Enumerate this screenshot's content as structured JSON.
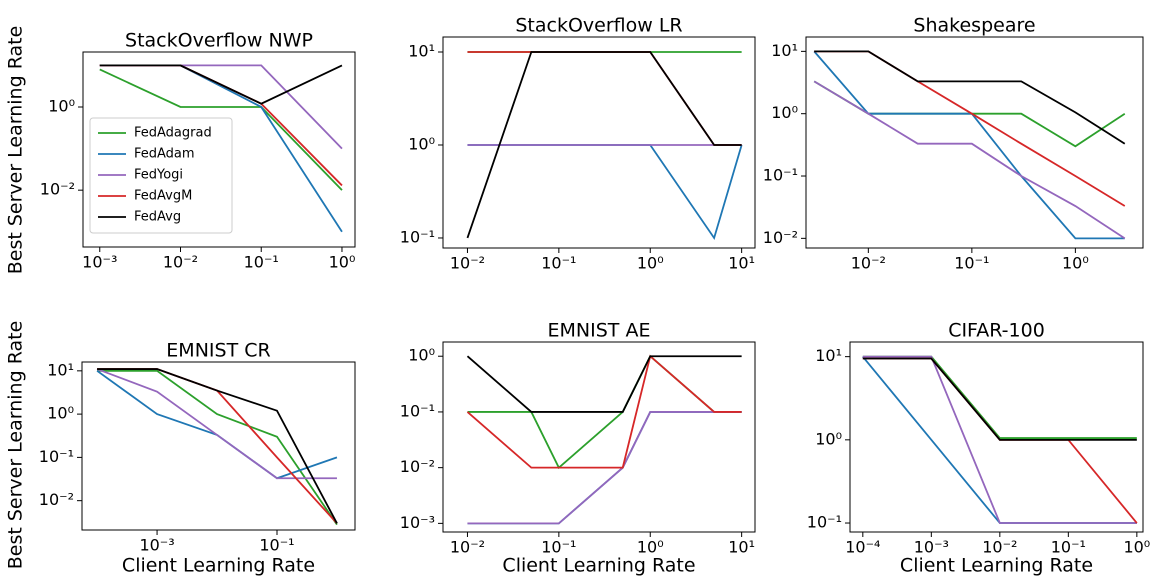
{
  "chart_data": [
    {
      "type": "line",
      "title": "StackOverflow NWP",
      "ylabel": "Best Server Learning Rate",
      "xscale": "log",
      "yscale": "log",
      "legend": "lower left",
      "x": [
        0.001,
        0.01,
        0.1,
        1
      ],
      "series": [
        {
          "name": "FedAdagrad",
          "color": "#2ca02c",
          "values": [
            8,
            1,
            1,
            0.01
          ]
        },
        {
          "name": "FedAdam",
          "color": "#1f77b4",
          "values": [
            10,
            10,
            1,
            0.001
          ]
        },
        {
          "name": "FedYogi",
          "color": "#9467bd",
          "values": [
            10,
            10,
            10,
            0.1
          ]
        },
        {
          "name": "FedAvgM",
          "color": "#d62728",
          "values": [
            10,
            10,
            1.2,
            0.013
          ]
        },
        {
          "name": "FedAvg",
          "color": "#000000",
          "values": [
            10,
            10,
            1.2,
            10
          ]
        }
      ],
      "xlim": [
        0.00062,
        1.45
      ],
      "ylim": [
        0.00043,
        21
      ],
      "xticks": [
        {
          "value": 0.001,
          "label": "10⁻³"
        },
        {
          "value": 0.01,
          "label": "10⁻²"
        },
        {
          "value": 0.1,
          "label": "10⁻¹"
        },
        {
          "value": 1,
          "label": "10⁰"
        }
      ],
      "yticks": [
        {
          "value": 0.01,
          "label": "10⁻²"
        },
        {
          "value": 1,
          "label": "10⁰"
        }
      ]
    },
    {
      "type": "line",
      "title": "StackOverflow LR",
      "xscale": "log",
      "yscale": "log",
      "x": [
        0.01,
        0.05,
        1,
        5,
        10
      ],
      "series": [
        {
          "name": "FedAdagrad",
          "color": "#2ca02c",
          "values": [
            10,
            10,
            10,
            10,
            10
          ]
        },
        {
          "name": "FedAdam",
          "color": "#1f77b4",
          "values": [
            1,
            1,
            1,
            0.1,
            1
          ]
        },
        {
          "name": "FedYogi",
          "color": "#9467bd",
          "values": [
            1,
            1,
            1,
            1,
            1
          ]
        },
        {
          "name": "FedAvgM",
          "color": "#d62728",
          "values": [
            10,
            10,
            10,
            1,
            1
          ]
        },
        {
          "name": "FedAvg",
          "color": "#000000",
          "values": [
            0.1,
            10,
            10,
            1,
            1
          ]
        }
      ],
      "xlim": [
        0.0054,
        14
      ],
      "ylim": [
        0.078,
        14.5
      ],
      "xticks": [
        {
          "value": 0.01,
          "label": "10⁻²"
        },
        {
          "value": 0.1,
          "label": "10⁻¹"
        },
        {
          "value": 1,
          "label": "10⁰"
        },
        {
          "value": 10,
          "label": "10¹"
        }
      ],
      "yticks": [
        {
          "value": 0.1,
          "label": "10⁻¹"
        },
        {
          "value": 1,
          "label": "10⁰"
        },
        {
          "value": 10,
          "label": "10¹"
        }
      ]
    },
    {
      "type": "line",
      "title": "Shakespeare",
      "xscale": "log",
      "yscale": "log",
      "x": [
        0.003,
        0.01,
        0.03,
        0.1,
        0.3,
        1,
        3
      ],
      "series": [
        {
          "name": "FedAdagrad",
          "color": "#2ca02c",
          "values": [
            3.3,
            1,
            1,
            1,
            1,
            0.3,
            1
          ]
        },
        {
          "name": "FedAdam",
          "color": "#1f77b4",
          "values": [
            10,
            1,
            1,
            1,
            0.1,
            0.01,
            0.01
          ]
        },
        {
          "name": "FedYogi",
          "color": "#9467bd",
          "values": [
            3.3,
            1,
            0.33,
            0.33,
            0.1,
            0.033,
            0.01
          ]
        },
        {
          "name": "FedAvgM",
          "color": "#d62728",
          "values": [
            10,
            10,
            3.3,
            1,
            0.33,
            0.1,
            0.033
          ]
        },
        {
          "name": "FedAvg",
          "color": "#000000",
          "values": [
            10,
            10,
            3.3,
            3.3,
            3.3,
            1.05,
            0.33
          ]
        }
      ],
      "xlim": [
        0.0025,
        4.5
      ],
      "ylim": [
        0.007,
        17
      ],
      "xticks": [
        {
          "value": 0.01,
          "label": "10⁻²"
        },
        {
          "value": 0.1,
          "label": "10⁻¹"
        },
        {
          "value": 1,
          "label": "10⁰"
        }
      ],
      "yticks": [
        {
          "value": 0.01,
          "label": "10⁻²"
        },
        {
          "value": 0.1,
          "label": "10⁻¹"
        },
        {
          "value": 1,
          "label": "10⁰"
        },
        {
          "value": 10,
          "label": "10¹"
        }
      ]
    },
    {
      "type": "line",
      "title": "EMNIST CR",
      "ylabel": "Best Server Learning Rate",
      "xlabel": "Client Learning Rate",
      "xscale": "log",
      "yscale": "log",
      "x": [
        0.0001,
        0.001,
        0.01,
        0.1,
        1
      ],
      "series": [
        {
          "name": "FedAdagrad",
          "color": "#2ca02c",
          "values": [
            10,
            10,
            1,
            0.3,
            0.0028
          ]
        },
        {
          "name": "FedAdam",
          "color": "#1f77b4",
          "values": [
            10,
            1,
            0.33,
            0.033,
            0.1
          ]
        },
        {
          "name": "FedYogi",
          "color": "#9467bd",
          "values": [
            11,
            3.3,
            0.33,
            0.033,
            0.033
          ]
        },
        {
          "name": "FedAvgM",
          "color": "#d62728",
          "values": [
            11,
            11,
            3.5,
            0.1,
            0.003
          ]
        },
        {
          "name": "FedAvg",
          "color": "#000000",
          "values": [
            11,
            11,
            3.5,
            1.2,
            0.003
          ]
        }
      ],
      "xlim": [
        5.6e-05,
        2
      ],
      "ylim": [
        0.0021,
        16
      ],
      "xticks": [
        {
          "value": 0.001,
          "label": "10⁻³"
        },
        {
          "value": 0.1,
          "label": "10⁻¹"
        }
      ],
      "yticks": [
        {
          "value": 0.01,
          "label": "10⁻²"
        },
        {
          "value": 0.1,
          "label": "10⁻¹"
        },
        {
          "value": 1,
          "label": "10⁰"
        },
        {
          "value": 10,
          "label": "10¹"
        }
      ]
    },
    {
      "type": "line",
      "title": "EMNIST AE",
      "xlabel": "Client Learning Rate",
      "xscale": "log",
      "yscale": "log",
      "x": [
        0.01,
        0.05,
        0.1,
        0.5,
        1,
        5,
        10
      ],
      "series": [
        {
          "name": "FedAdagrad",
          "color": "#2ca02c",
          "values": [
            0.1,
            0.1,
            0.01,
            0.1,
            1,
            0.1,
            0.1
          ]
        },
        {
          "name": "FedAdam",
          "color": "#1f77b4",
          "values": [
            0.001,
            0.001,
            0.001,
            0.01,
            0.1,
            0.1,
            0.1
          ]
        },
        {
          "name": "FedYogi",
          "color": "#9467bd",
          "values": [
            0.001,
            0.001,
            0.001,
            0.01,
            0.1,
            0.1,
            0.1
          ]
        },
        {
          "name": "FedAvgM",
          "color": "#d62728",
          "values": [
            0.1,
            0.01,
            0.01,
            0.01,
            1,
            0.1,
            0.1
          ]
        },
        {
          "name": "FedAvg",
          "color": "#000000",
          "values": [
            1,
            0.1,
            0.1,
            0.1,
            1,
            1,
            1
          ]
        }
      ],
      "xlim": [
        0.0054,
        14
      ],
      "ylim": [
        0.0007,
        1.8
      ],
      "xticks": [
        {
          "value": 0.01,
          "label": "10⁻²"
        },
        {
          "value": 0.1,
          "label": "10⁻¹"
        },
        {
          "value": 1,
          "label": "10⁰"
        },
        {
          "value": 10,
          "label": "10¹"
        }
      ],
      "yticks": [
        {
          "value": 0.001,
          "label": "10⁻³"
        },
        {
          "value": 0.01,
          "label": "10⁻²"
        },
        {
          "value": 0.1,
          "label": "10⁻¹"
        },
        {
          "value": 1,
          "label": "10⁰"
        }
      ]
    },
    {
      "type": "line",
      "title": "CIFAR-100",
      "xlabel": "Client Learning Rate",
      "xscale": "log",
      "yscale": "log",
      "x": [
        0.0001,
        0.001,
        0.01,
        0.1,
        1
      ],
      "series": [
        {
          "name": "FedAdagrad",
          "color": "#2ca02c",
          "values": [
            10,
            10,
            1.05,
            1.05,
            1.05
          ]
        },
        {
          "name": "FedAdam",
          "color": "#1f77b4",
          "values": [
            10,
            1,
            0.1,
            0.1,
            0.1
          ]
        },
        {
          "name": "FedYogi",
          "color": "#9467bd",
          "values": [
            10,
            10,
            0.1,
            0.1,
            0.1
          ]
        },
        {
          "name": "FedAvgM",
          "color": "#d62728",
          "values": [
            9.5,
            9.5,
            1,
            1,
            0.1
          ]
        },
        {
          "name": "FedAvg",
          "color": "#000000",
          "values": [
            9.5,
            9.5,
            1,
            1,
            1
          ]
        }
      ],
      "xlim": [
        6.5e-05,
        1.23
      ],
      "ylim": [
        0.078,
        15
      ],
      "xticks": [
        {
          "value": 0.0001,
          "label": "10⁻⁴"
        },
        {
          "value": 0.001,
          "label": "10⁻³"
        },
        {
          "value": 0.01,
          "label": "10⁻²"
        },
        {
          "value": 0.1,
          "label": "10⁻¹"
        },
        {
          "value": 1,
          "label": "10⁰"
        }
      ],
      "yticks": [
        {
          "value": 0.1,
          "label": "10⁻¹"
        },
        {
          "value": 1,
          "label": "10⁰"
        },
        {
          "value": 10,
          "label": "10¹"
        }
      ]
    }
  ]
}
